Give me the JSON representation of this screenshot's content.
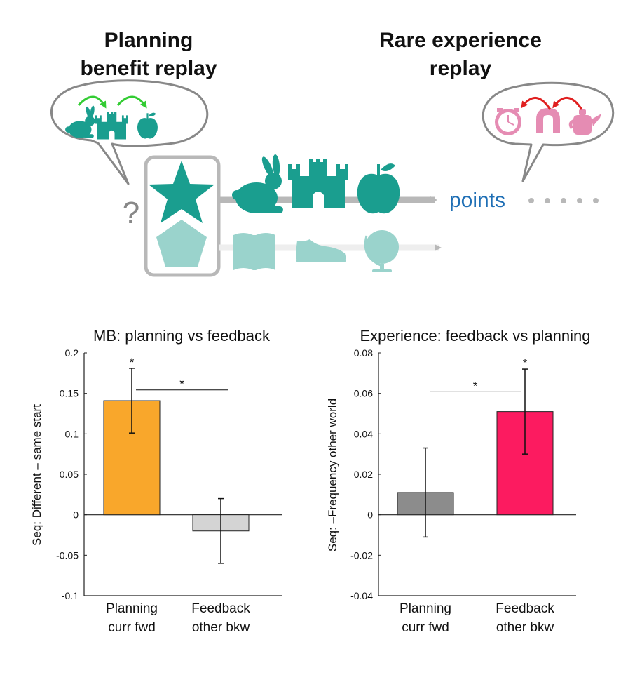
{
  "diagram": {
    "left_heading": [
      "Planning",
      "benefit replay"
    ],
    "right_heading": [
      "Rare experience",
      "replay"
    ],
    "question_mark": "?",
    "points_label": "points",
    "teal_color": "#1a9e8f",
    "light_teal_color": "#9ad3cc",
    "pink_color": "#e58cb3",
    "green_arrow_color": "#33cc33",
    "red_arrow_color": "#e02020",
    "top_row_icons": [
      "rabbit-icon",
      "castle-icon",
      "apple-icon"
    ],
    "bottom_row_icons": [
      "book-icon",
      "sneaker-icon",
      "globe-icon"
    ],
    "left_bubble_icons": [
      "rabbit-icon",
      "castle-icon",
      "apple-icon"
    ],
    "right_bubble_icons": [
      "clock-icon",
      "magnet-icon",
      "teapot-icon"
    ],
    "start_icons": [
      "star-icon",
      "pentagon-icon"
    ]
  },
  "chart_data": [
    {
      "type": "bar",
      "title": "MB: planning vs feedback",
      "ylabel": "Seq: Different – same start",
      "categories": [
        [
          "Planning",
          "curr fwd"
        ],
        [
          "Feedback",
          "other bkw"
        ]
      ],
      "values": [
        0.141,
        -0.02
      ],
      "errors_low": [
        0.101,
        -0.06
      ],
      "errors_high": [
        0.181,
        0.02
      ],
      "colors": [
        "#f9a72b",
        "#d4d4d4"
      ],
      "ylim": [
        -0.1,
        0.2
      ],
      "yticks": [
        -0.1,
        -0.05,
        0,
        0.05,
        0.1,
        0.15,
        0.2
      ],
      "ytick_labels": [
        "-0.1",
        "-0.05",
        "0",
        "0.05",
        "0.1",
        "0.15",
        "0.2"
      ],
      "bar_significance": [
        "*",
        ""
      ],
      "bracket_label": "*"
    },
    {
      "type": "bar",
      "title": "Experience: feedback vs planning",
      "ylabel": "Seq: –Frequency other world",
      "categories": [
        [
          "Planning",
          "curr fwd"
        ],
        [
          "Feedback",
          "other bkw"
        ]
      ],
      "values": [
        0.011,
        0.051
      ],
      "errors_low": [
        -0.011,
        0.03
      ],
      "errors_high": [
        0.033,
        0.072
      ],
      "colors": [
        "#8c8c8c",
        "#fc1b60"
      ],
      "ylim": [
        -0.04,
        0.08
      ],
      "yticks": [
        -0.04,
        -0.02,
        0,
        0.02,
        0.04,
        0.06,
        0.08
      ],
      "ytick_labels": [
        "-0.04",
        "-0.02",
        "0",
        "0.02",
        "0.04",
        "0.06",
        "0.08"
      ],
      "bar_significance": [
        "",
        "*"
      ],
      "bracket_label": "*"
    }
  ]
}
